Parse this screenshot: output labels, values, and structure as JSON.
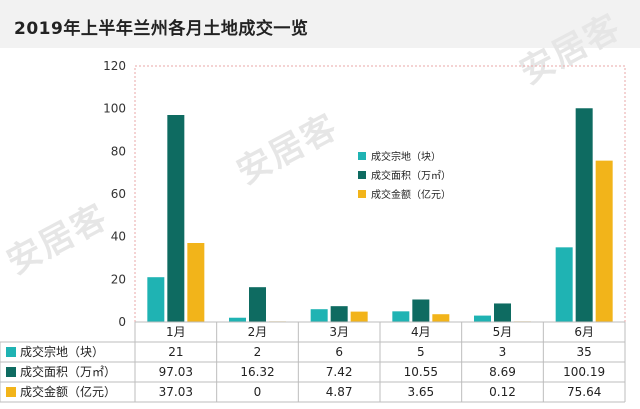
{
  "title": "2019年上半年兰州各月土地成交一览",
  "watermark": "安居客",
  "colors": {
    "series1": "#1fb3b3",
    "series2": "#0e6b61",
    "series3": "#f2b41a"
  },
  "chart_data": {
    "type": "bar",
    "title": "2019年上半年兰州各月土地成交一览",
    "categories": [
      "1月",
      "2月",
      "3月",
      "4月",
      "5月",
      "6月"
    ],
    "ylim": [
      0,
      120
    ],
    "yticks": [
      "0",
      "20",
      "40",
      "60",
      "80",
      "100",
      "120"
    ],
    "legend_position": "center",
    "series": [
      {
        "name": "成交宗地（块）",
        "values": [
          21,
          2,
          6,
          5,
          3,
          35
        ],
        "labels": [
          "21",
          "2",
          "6",
          "5",
          "3",
          "35"
        ]
      },
      {
        "name": "成交面积（万㎡）",
        "values": [
          97.03,
          16.32,
          7.42,
          10.55,
          8.69,
          100.19
        ],
        "labels": [
          "97.03",
          "16.32",
          "7.42",
          "10.55",
          "8.69",
          "100.19"
        ]
      },
      {
        "name": "成交金额（亿元）",
        "values": [
          37.03,
          0,
          4.87,
          3.65,
          0.12,
          75.64
        ],
        "labels": [
          "37.03",
          "0",
          "4.87",
          "3.65",
          "0.12",
          "75.64"
        ]
      }
    ]
  }
}
